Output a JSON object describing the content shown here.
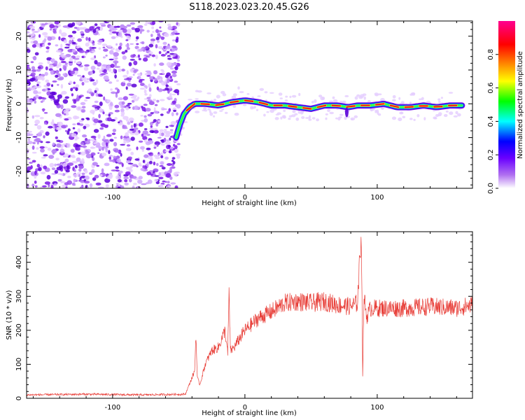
{
  "title": "S118.2023.023.20.45.G26",
  "colors": {
    "snr_line": "#e8403a",
    "axes": "#000000",
    "colorbar": [
      "#ffffff",
      "#a020f0",
      "#0000ff",
      "#00ffff",
      "#00ff00",
      "#ffff00",
      "#ff8000",
      "#ff0000",
      "#ff00a0"
    ]
  },
  "chart_data": [
    {
      "type": "heatmap",
      "xlabel": "Height of straight line (km)",
      "ylabel": "Frequency (Hz)",
      "xlim": [
        -165,
        172
      ],
      "ylim": [
        -25,
        24.5
      ],
      "xticks": [
        -100,
        0,
        100
      ],
      "yticks": [
        -20,
        -10,
        0,
        10,
        20
      ],
      "grid": false,
      "noise_region_x": [
        -165,
        -50
      ],
      "signal_ridge": {
        "x": [
          -52,
          -49,
          -46,
          -42,
          -38,
          -30,
          -20,
          -10,
          0,
          10,
          20,
          30,
          40,
          50,
          60,
          70,
          78,
          85,
          95,
          105,
          115,
          125,
          135,
          145,
          155,
          165
        ],
        "y": [
          -10,
          -6,
          -3,
          -1,
          0,
          0,
          -0.5,
          0.5,
          1,
          0.5,
          -0.5,
          -0.5,
          -1,
          -1.5,
          -0.5,
          -0.5,
          -1,
          -0.5,
          -0.5,
          0,
          -1,
          -1,
          -0.5,
          -1,
          -0.5,
          -0.5
        ]
      },
      "colorbar": {
        "label": "Normalized spectral amplitude",
        "ticks": [
          0.0,
          0.2,
          0.4,
          0.6,
          0.8
        ],
        "range": [
          0,
          1
        ],
        "placement": "right"
      }
    },
    {
      "type": "line",
      "xlabel": "Height of straight line (km)",
      "ylabel": "SNR (10 * v/v)",
      "xlim": [
        -165,
        172
      ],
      "ylim": [
        0,
        490
      ],
      "xticks": [
        -100,
        0,
        100
      ],
      "yticks": [
        0,
        100,
        200,
        300,
        400
      ],
      "grid": false,
      "series": [
        {
          "x": [
            -165,
            -120,
            -80,
            -45,
            -38,
            -37,
            -36,
            -34,
            -30,
            -25,
            -20,
            -15,
            -13,
            -12,
            -11,
            -8,
            -5,
            0,
            10,
            20,
            30,
            40,
            50,
            60,
            70,
            80,
            85,
            88,
            89,
            90,
            92,
            95,
            100,
            120,
            140,
            160,
            172
          ],
          "y": [
            10,
            12,
            10,
            12,
            80,
            190,
            60,
            40,
            100,
            140,
            150,
            200,
            130,
            310,
            140,
            150,
            170,
            200,
            235,
            255,
            280,
            285,
            280,
            285,
            275,
            270,
            280,
            490,
            70,
            300,
            240,
            265,
            265,
            265,
            270,
            265,
            275
          ]
        }
      ]
    }
  ]
}
